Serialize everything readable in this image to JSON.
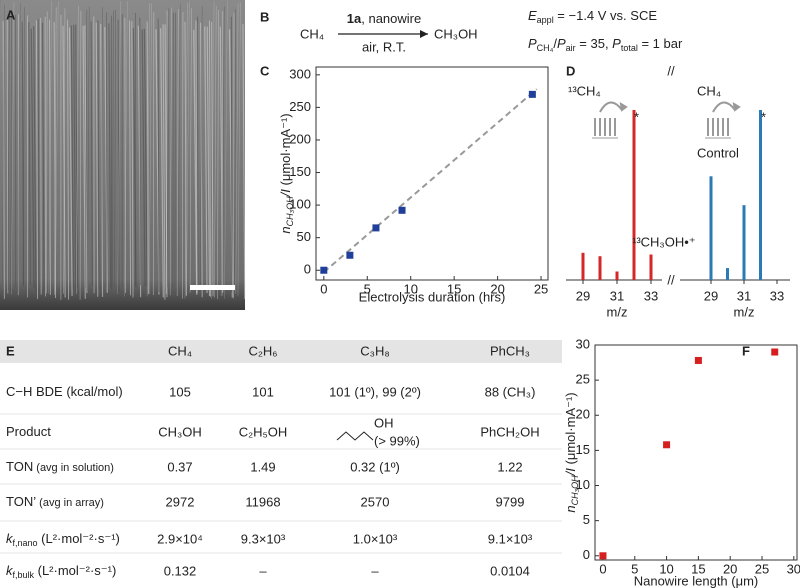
{
  "panel_labels": [
    "A",
    "B",
    "C",
    "D",
    "E",
    "F"
  ],
  "scheme": {
    "reactant": "CH₄",
    "reagent": "1a",
    "reagent_rest": ", nanowire",
    "conditions": "air, R.T.",
    "product": "CH₃OH",
    "potential": [
      "E",
      "appl",
      " = −1.4 V vs. SCE"
    ],
    "pressure": [
      "P",
      "CH₄",
      "/",
      "P",
      "air",
      " =  35, ",
      "P",
      "total",
      " = 1 bar"
    ]
  },
  "chart_data": [
    {
      "type": "scatter",
      "x": [
        0,
        3,
        6,
        9,
        24
      ],
      "values": [
        0,
        23,
        65,
        92,
        270
      ],
      "color": "#1f3f9a",
      "xlim": [
        -0.9,
        25.8
      ],
      "ylim": [
        -15,
        312
      ],
      "xticks": [
        0,
        5,
        10,
        15,
        20,
        25
      ],
      "yticks": [
        0,
        50,
        100,
        150,
        200,
        250,
        300
      ],
      "x_label": "Electrolysis duration (hrs)",
      "y_label": [
        "n",
        "CH₃OH",
        "/I",
        " (μmol·mA⁻¹)"
      ],
      "fit": {
        "x": [
          0,
          24.5
        ],
        "values": [
          -3,
          278
        ],
        "color": "#999999"
      }
    },
    {
      "type": "mass_spectrum",
      "x_label": "m/z",
      "groups": [
        {
          "name": "¹³CH₄",
          "color": "#d62728",
          "x": [
            29,
            30,
            31,
            32,
            33
          ],
          "values": [
            16,
            14,
            5,
            100,
            15
          ],
          "xticks": [
            29,
            31,
            33
          ]
        },
        {
          "name": "CH₄",
          "note": "Control",
          "color": "#2a7ab5",
          "x": [
            29,
            30,
            31,
            32
          ],
          "values": [
            61,
            7,
            44,
            100
          ],
          "xticks": [
            29,
            31,
            33
          ]
        }
      ],
      "annotations": {
        "ion": "¹³CH₃OH•⁺",
        "marker": "*"
      }
    },
    {
      "type": "scatter",
      "x": [
        0,
        10,
        15,
        27
      ],
      "values": [
        0,
        15.8,
        27.8,
        29
      ],
      "color": "#d62020",
      "xlim": [
        -1.25,
        30.5
      ],
      "ylim": [
        -0.6,
        30
      ],
      "xticks": [
        0,
        5,
        10,
        15,
        20,
        25,
        30
      ],
      "yticks": [
        0,
        5,
        10,
        15,
        20,
        25,
        30
      ],
      "x_label": "Nanowire length (μm)",
      "y_label": [
        "n",
        "CH₃OH",
        "/I",
        " (μmol·mA⁻¹)"
      ]
    }
  ],
  "table": {
    "columns": [
      "CH₄",
      "C₂H₆",
      "C₃H₈",
      "PhCH₃"
    ],
    "rows": [
      {
        "label": [
          "C−H BDE (kcal/mol)"
        ],
        "cells": [
          "105",
          "101",
          "101 (1º), 99 (2º)",
          "88 (CH₃)"
        ]
      },
      {
        "label": [
          "Product"
        ],
        "cells": [
          "CH₃OH",
          "C₂H₅OH",
          {
            "structure": "OH",
            "note": "(> 99%)"
          },
          "PhCH₂OH"
        ]
      },
      {
        "label": [
          "TON",
          " (avg in solution)"
        ],
        "cells": [
          "0.37",
          "1.49",
          "0.32 (1º)",
          "1.22"
        ]
      },
      {
        "label": [
          "TON’",
          " (avg in array)"
        ],
        "cells": [
          "2972",
          "11968",
          "2570",
          "9799"
        ]
      },
      {
        "label": [
          "k",
          "f,nano",
          " (L²·mol⁻²·s⁻¹)"
        ],
        "cells": [
          "2.9×10⁴",
          "9.3×10³",
          "1.0×10³",
          "9.1×10³"
        ]
      },
      {
        "label": [
          "k",
          "f,bulk",
          " (L²·mol⁻²·s⁻¹)"
        ],
        "cells": [
          "0.132",
          "–",
          "–",
          "0.0104"
        ]
      }
    ]
  }
}
